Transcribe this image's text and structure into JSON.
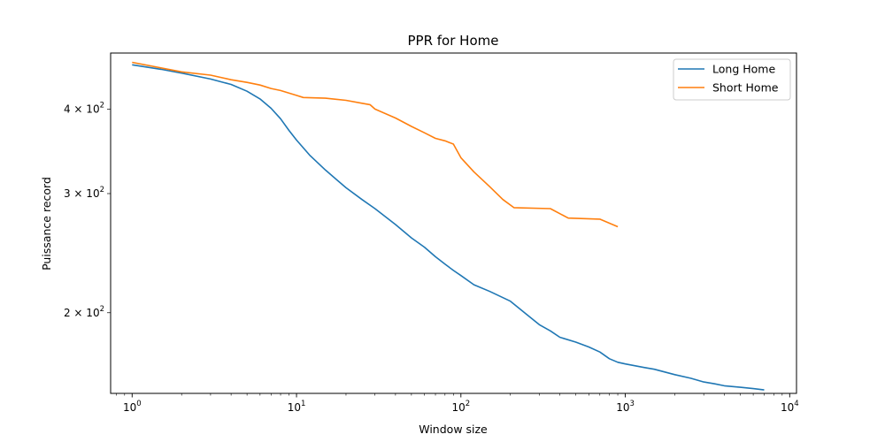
{
  "chart_data": {
    "type": "line",
    "title": "PPR for Home",
    "xlabel": "Window size",
    "ylabel": "Puissance record",
    "xscale": "log",
    "yscale": "log",
    "xlim": [
      0.74,
      11000
    ],
    "ylim": [
      152,
      484
    ],
    "grid": false,
    "legend_position": "upper right",
    "x_ticks": [
      {
        "value": 1,
        "base": "10",
        "exp": "0"
      },
      {
        "value": 10,
        "base": "10",
        "exp": "1"
      },
      {
        "value": 100,
        "base": "10",
        "exp": "2"
      },
      {
        "value": 1000,
        "base": "10",
        "exp": "3"
      },
      {
        "value": 10000,
        "base": "10",
        "exp": "4"
      }
    ],
    "y_ticks": [
      {
        "value": 200,
        "mant": "2 × 10",
        "exp": "2"
      },
      {
        "value": 300,
        "mant": "3 × 10",
        "exp": "2"
      },
      {
        "value": 400,
        "mant": "4 × 10",
        "exp": "2"
      }
    ],
    "series": [
      {
        "name": "Long Home",
        "color": "#1f77b4",
        "points": [
          [
            1,
            465
          ],
          [
            1.5,
            458
          ],
          [
            2,
            452
          ],
          [
            3,
            443
          ],
          [
            4,
            435
          ],
          [
            5,
            425
          ],
          [
            6,
            414
          ],
          [
            7,
            401
          ],
          [
            8,
            387
          ],
          [
            9,
            372
          ],
          [
            10,
            360
          ],
          [
            12,
            342
          ],
          [
            15,
            325
          ],
          [
            20,
            306
          ],
          [
            25,
            294
          ],
          [
            30,
            285
          ],
          [
            40,
            270
          ],
          [
            50,
            258
          ],
          [
            60,
            250
          ],
          [
            70,
            242
          ],
          [
            80,
            236
          ],
          [
            90,
            231
          ],
          [
            100,
            227
          ],
          [
            120,
            220
          ],
          [
            150,
            215
          ],
          [
            200,
            208
          ],
          [
            250,
            199
          ],
          [
            300,
            192
          ],
          [
            350,
            188
          ],
          [
            400,
            184
          ],
          [
            500,
            181
          ],
          [
            600,
            178
          ],
          [
            700,
            175
          ],
          [
            800,
            171
          ],
          [
            900,
            169
          ],
          [
            1000,
            168
          ],
          [
            1300,
            166
          ],
          [
            1500,
            165
          ],
          [
            2000,
            162
          ],
          [
            2500,
            160
          ],
          [
            3000,
            158
          ],
          [
            3500,
            157
          ],
          [
            4000,
            156
          ],
          [
            5000,
            155.2
          ],
          [
            6000,
            154.5
          ],
          [
            7000,
            153.8
          ]
        ]
      },
      {
        "name": "Short Home",
        "color": "#ff7f0e",
        "points": [
          [
            1,
            469
          ],
          [
            2,
            454
          ],
          [
            3,
            449
          ],
          [
            4,
            442
          ],
          [
            5,
            438
          ],
          [
            6,
            434
          ],
          [
            7,
            429
          ],
          [
            8,
            426
          ],
          [
            10,
            419
          ],
          [
            11,
            416
          ],
          [
            15,
            415
          ],
          [
            20,
            412
          ],
          [
            25,
            408
          ],
          [
            28,
            406
          ],
          [
            30,
            400
          ],
          [
            40,
            388
          ],
          [
            50,
            377
          ],
          [
            60,
            369
          ],
          [
            70,
            362
          ],
          [
            80,
            359
          ],
          [
            90,
            355
          ],
          [
            100,
            339
          ],
          [
            120,
            323
          ],
          [
            150,
            307
          ],
          [
            180,
            294
          ],
          [
            210,
            286
          ],
          [
            350,
            285
          ],
          [
            450,
            276
          ],
          [
            700,
            275
          ],
          [
            900,
            268
          ]
        ]
      }
    ]
  }
}
